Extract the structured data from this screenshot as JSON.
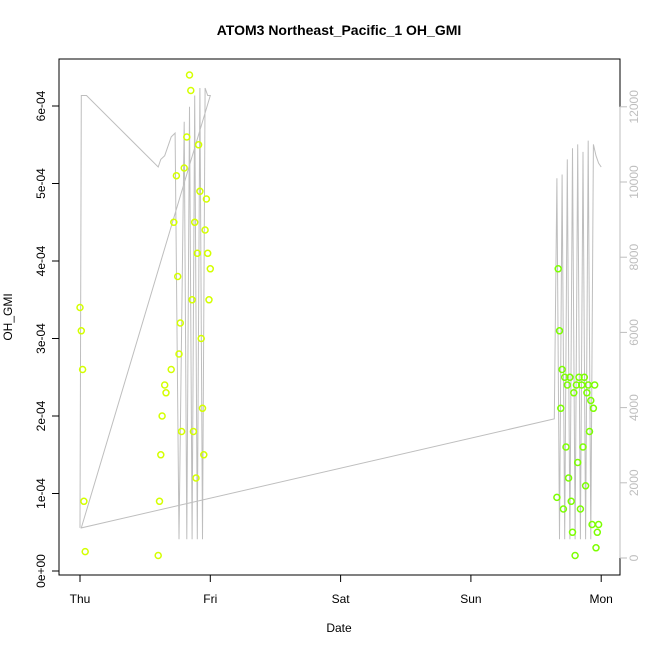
{
  "chart_data": {
    "type": "scatter",
    "title": "ATOM3 Northeast_Pacific_1 OH_GMI",
    "xlabel": "Date",
    "ylabel": "OH_GMI",
    "x_ticks": [
      "Thu",
      "Fri",
      "Sat",
      "Sun",
      "Mon"
    ],
    "y_ticks": [
      "0e+00",
      "1e-04",
      "2e-04",
      "3e-04",
      "4e-04",
      "5e-04",
      "6e-04"
    ],
    "y_right_ticks": [
      "0",
      "2000",
      "4000",
      "6000",
      "8000",
      "10000",
      "12000"
    ],
    "ylim": [
      0,
      0.00065
    ],
    "y_right_lim": [
      0,
      13000
    ],
    "xlim_days": [
      0,
      4
    ],
    "grid": false,
    "colors": {
      "early_points": "#d4ff00",
      "late_points": "#7cff00",
      "altitude_line": "#bebebe",
      "axes": "#000000"
    },
    "series": [
      {
        "marker": "open-circle",
        "x": [
          0.0,
          0.01,
          0.02,
          0.03,
          0.04,
          0.6,
          0.61,
          0.62,
          0.63,
          0.65,
          0.66,
          0.7,
          0.72,
          0.74,
          0.75,
          0.76,
          0.77,
          0.78,
          0.8,
          0.82,
          0.84,
          0.85,
          0.86,
          0.87,
          0.88,
          0.89,
          0.9,
          0.91,
          0.92,
          0.93,
          0.94,
          0.95,
          0.96,
          0.97,
          0.98,
          0.99,
          1.0
        ],
        "y": [
          0.00034,
          0.00031,
          0.00026,
          9e-05,
          2.5e-05,
          2e-05,
          9e-05,
          0.00015,
          0.0002,
          0.00024,
          0.00023,
          0.00026,
          0.00045,
          0.00051,
          0.00038,
          0.00028,
          0.00032,
          0.00018,
          0.00052,
          0.00056,
          0.00064,
          0.00062,
          0.00035,
          0.00018,
          0.00045,
          0.00012,
          0.00041,
          0.00055,
          0.00049,
          0.0003,
          0.00021,
          0.00015,
          0.00044,
          0.00048,
          0.00041,
          0.00035,
          0.00039
        ]
      },
      {
        "marker": "open-circle",
        "x": [
          3.66,
          3.67,
          3.68,
          3.69,
          3.7,
          3.71,
          3.72,
          3.73,
          3.74,
          3.75,
          3.76,
          3.77,
          3.78,
          3.79,
          3.8,
          3.81,
          3.82,
          3.83,
          3.84,
          3.85,
          3.86,
          3.87,
          3.88,
          3.89,
          3.9,
          3.91,
          3.92,
          3.93,
          3.94,
          3.95,
          3.96,
          3.97,
          3.98
        ],
        "y": [
          9.5e-05,
          0.00039,
          0.00031,
          0.00021,
          0.00026,
          8e-05,
          0.00025,
          0.00016,
          0.00024,
          0.00012,
          0.00025,
          9e-05,
          5e-05,
          0.00023,
          2e-05,
          0.00024,
          0.00014,
          0.00025,
          8e-05,
          0.00024,
          0.00016,
          0.00025,
          0.00011,
          0.00023,
          0.00024,
          0.00018,
          0.00022,
          6e-05,
          0.00021,
          0.00024,
          3e-05,
          5e-05,
          6e-05
        ]
      },
      {
        "name": "",
        "axis": "right",
        "style": "line",
        "x": [
          0.0,
          0.01,
          0.05,
          0.6,
          0.62,
          0.65,
          0.7,
          0.73,
          0.76,
          0.8,
          0.82,
          0.84,
          0.86,
          0.88,
          0.9,
          0.92,
          0.94,
          0.96,
          0.98,
          1.0,
          1.0,
          0.01,
          3.64,
          3.66,
          3.68,
          3.7,
          3.72,
          3.74,
          3.76,
          3.78,
          3.8,
          3.82,
          3.84,
          3.86,
          3.88,
          3.9,
          3.92,
          3.94,
          3.96,
          3.98,
          4.0
        ],
        "y": [
          800,
          12300,
          12300,
          10400,
          10600,
          10700,
          11200,
          11300,
          500,
          11600,
          500,
          12000,
          500,
          12300,
          500,
          12500,
          500,
          12500,
          12300,
          12300,
          12300,
          800,
          3700,
          10100,
          500,
          10200,
          500,
          10600,
          500,
          10900,
          500,
          11000,
          500,
          10800,
          500,
          11100,
          500,
          11000,
          10700,
          10500,
          10400
        ]
      }
    ]
  }
}
